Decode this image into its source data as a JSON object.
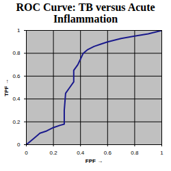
{
  "chart_data": {
    "type": "line",
    "title": "ROC Curve: TB versus Acute Inflammation",
    "x_label": "FPF",
    "y_label": "TPF",
    "x": [
      0,
      0.02,
      0.05,
      0.08,
      0.1,
      0.15,
      0.2,
      0.25,
      0.28,
      0.28,
      0.29,
      0.32,
      0.35,
      0.35,
      0.38,
      0.4,
      0.42,
      0.45,
      0.5,
      0.55,
      0.6,
      0.7,
      0.8,
      0.9,
      1
    ],
    "values": [
      0,
      0.02,
      0.05,
      0.08,
      0.1,
      0.12,
      0.15,
      0.17,
      0.18,
      0.3,
      0.45,
      0.5,
      0.55,
      0.65,
      0.7,
      0.75,
      0.8,
      0.83,
      0.86,
      0.88,
      0.9,
      0.93,
      0.95,
      0.97,
      1
    ],
    "color": "#1a1a8c",
    "xlim": [
      0,
      1
    ],
    "ylim": [
      0,
      1
    ],
    "xticks": [
      0,
      0.2,
      0.4,
      0.6,
      0.8,
      1
    ],
    "yticks": [
      0,
      0.2,
      0.4,
      0.6,
      0.8,
      1
    ],
    "grid": true
  }
}
